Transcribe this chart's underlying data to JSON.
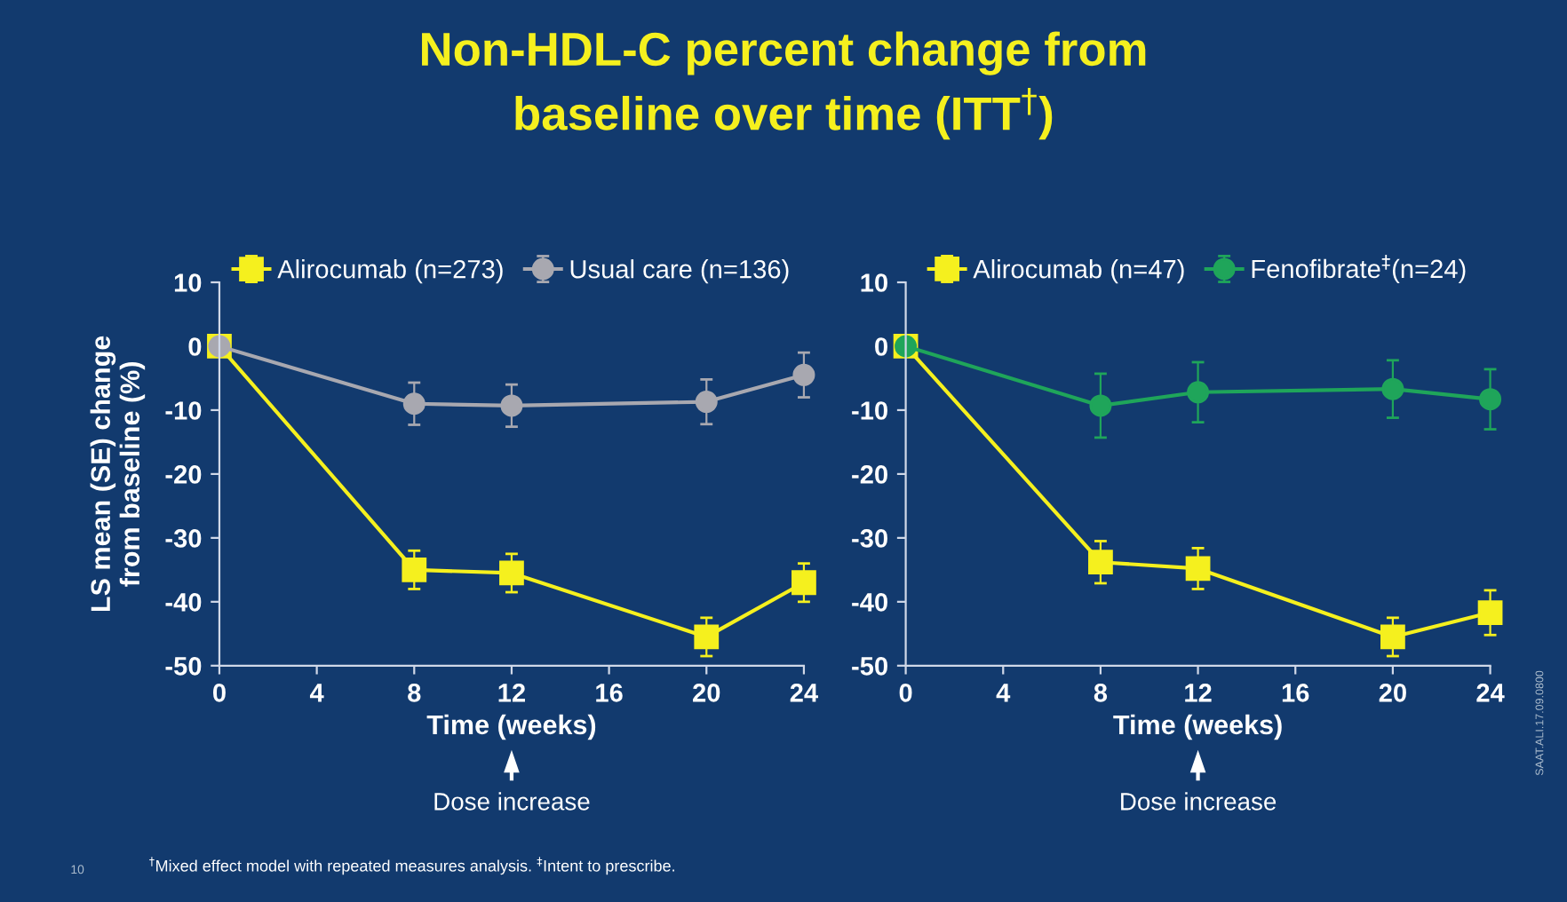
{
  "chart_data": [
    {
      "type": "line",
      "title": "Non-HDL-C percent change from\nbaseline over time (ITT$^{†}$)",
      "xlabel": "Time (weeks)",
      "ylabel": "LS mean (SE) change\nfrom baseline (%)",
      "x": [
        0,
        8,
        12,
        20,
        24
      ],
      "xlim": [
        0,
        24
      ],
      "xticks": [
        0,
        4,
        8,
        12,
        16,
        20,
        24
      ],
      "ylim": [
        -50,
        10
      ],
      "yticks": [
        -50,
        -40,
        -30,
        -20,
        -10,
        0,
        10
      ],
      "legend": "top",
      "grid": false,
      "series": [
        {
          "name": "Alirocumab (n=273)",
          "color": "#f5f01e",
          "marker": "square",
          "values": [
            0,
            -35,
            -35.5,
            -45.5,
            -37
          ],
          "errors": [
            0,
            3,
            3,
            3,
            3
          ]
        },
        {
          "name": "Usual care (n=136)",
          "color": "#a8a8b0",
          "marker": "circle",
          "values": [
            0,
            -9,
            -9.3,
            -8.7,
            -4.5
          ],
          "errors": [
            0,
            3.3,
            3.3,
            3.5,
            3.5
          ]
        }
      ],
      "annotations": [
        "Dose increase",
        "$^{†}$Mixed effect model with repeated measures analysis. $^{‡}$Intent to prescribe.",
        "10"
      ]
    },
    {
      "type": "line",
      "xlabel": "Time (weeks)",
      "x": [
        0,
        8,
        12,
        20,
        24
      ],
      "xlim": [
        0,
        24
      ],
      "xticks": [
        0,
        4,
        8,
        12,
        16,
        20,
        24
      ],
      "ylim": [
        -50,
        10
      ],
      "yticks": [
        -50,
        -40,
        -30,
        -20,
        -10,
        0,
        10
      ],
      "legend": "top",
      "grid": false,
      "series": [
        {
          "name": "Alirocumab (n=47)",
          "color": "#f5f01e",
          "marker": "square",
          "values": [
            0,
            -33.8,
            -34.8,
            -45.5,
            -41.7
          ],
          "errors": [
            0,
            3.3,
            3.2,
            3,
            3.5
          ]
        },
        {
          "name": "Fenofibrate$^{‡}$(n=24)",
          "color": "#1fa55a",
          "marker": "circle",
          "values": [
            0,
            -9.3,
            -7.2,
            -6.7,
            -8.3
          ],
          "errors": [
            0,
            5,
            4.7,
            4.5,
            4.7
          ]
        }
      ],
      "annotations": [
        "Dose increase",
        "SAAT.ALI.17.09.0800"
      ]
    }
  ]
}
